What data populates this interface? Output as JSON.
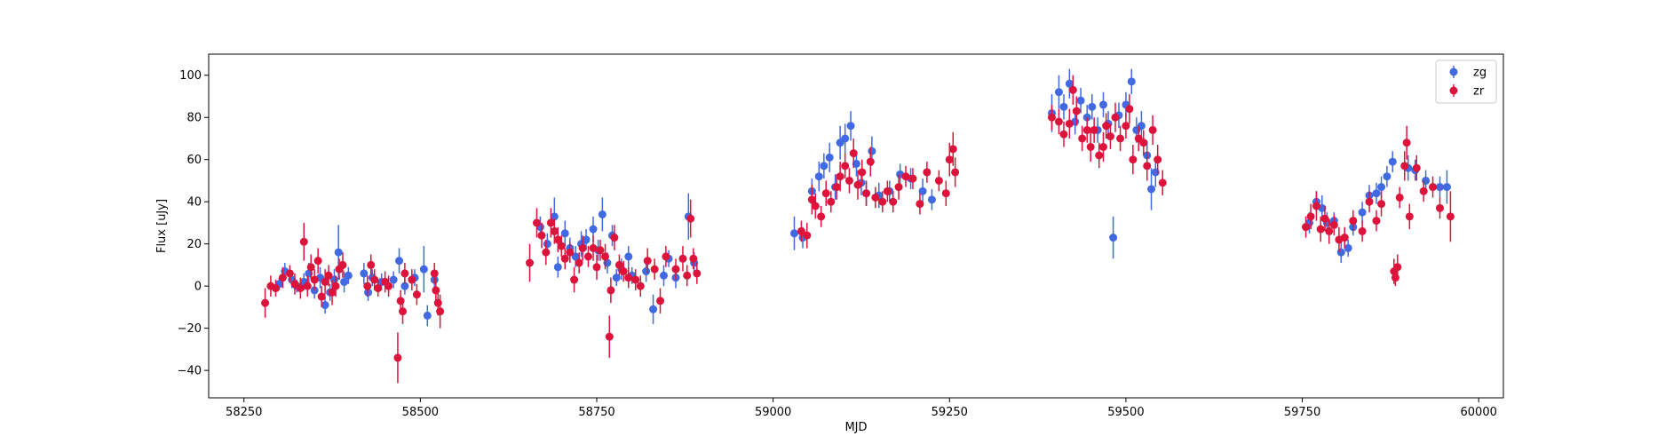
{
  "chart_data": {
    "type": "scatter",
    "title": "",
    "xlabel": "MJD",
    "ylabel": "Flux [uJy]",
    "xlim": [
      58200,
      60035
    ],
    "ylim": [
      -53,
      110
    ],
    "xticks": [
      58250,
      58500,
      58750,
      59000,
      59250,
      59500,
      59750,
      60000
    ],
    "yticks": [
      -40,
      -20,
      0,
      20,
      40,
      60,
      80,
      100
    ],
    "grid": false,
    "legend": "top-right",
    "series": [
      {
        "name": "zg",
        "color": "#4169E1",
        "points": [
          [
            58300,
            1,
            3
          ],
          [
            58308,
            7,
            4
          ],
          [
            58318,
            3,
            4
          ],
          [
            58325,
            0,
            3
          ],
          [
            58335,
            2,
            4
          ],
          [
            58342,
            6,
            5
          ],
          [
            58350,
            -2,
            4
          ],
          [
            58358,
            4,
            5
          ],
          [
            58365,
            -9,
            4
          ],
          [
            58372,
            -3,
            4
          ],
          [
            58378,
            3,
            5
          ],
          [
            58384,
            16,
            13
          ],
          [
            58392,
            2,
            5
          ],
          [
            58398,
            5,
            4
          ],
          [
            58420,
            6,
            5
          ],
          [
            58426,
            -3,
            4
          ],
          [
            58432,
            4,
            4
          ],
          [
            58445,
            2,
            4
          ],
          [
            58462,
            3,
            4
          ],
          [
            58470,
            12,
            6
          ],
          [
            58478,
            0,
            4
          ],
          [
            58492,
            4,
            4
          ],
          [
            58505,
            8,
            11
          ],
          [
            58510,
            -14,
            5
          ],
          [
            58520,
            3,
            4
          ],
          [
            58670,
            28,
            5
          ],
          [
            58680,
            20,
            5
          ],
          [
            58690,
            33,
            9
          ],
          [
            58695,
            9,
            5
          ],
          [
            58705,
            25,
            6
          ],
          [
            58712,
            18,
            5
          ],
          [
            58720,
            14,
            5
          ],
          [
            58728,
            20,
            6
          ],
          [
            58735,
            22,
            5
          ],
          [
            58745,
            27,
            6
          ],
          [
            58752,
            17,
            5
          ],
          [
            58758,
            34,
            8
          ],
          [
            58765,
            11,
            5
          ],
          [
            58772,
            24,
            5
          ],
          [
            58778,
            4,
            4
          ],
          [
            58785,
            8,
            5
          ],
          [
            58795,
            14,
            5
          ],
          [
            58800,
            5,
            4
          ],
          [
            58820,
            7,
            5
          ],
          [
            58830,
            -11,
            7
          ],
          [
            58845,
            5,
            5
          ],
          [
            58852,
            13,
            4
          ],
          [
            58862,
            4,
            5
          ],
          [
            58880,
            33,
            11
          ],
          [
            58888,
            11,
            5
          ],
          [
            59030,
            25,
            8
          ],
          [
            59042,
            23,
            5
          ],
          [
            59055,
            45,
            6
          ],
          [
            59065,
            52,
            7
          ],
          [
            59072,
            57,
            6
          ],
          [
            59080,
            61,
            7
          ],
          [
            59088,
            47,
            6
          ],
          [
            59095,
            68,
            8
          ],
          [
            59102,
            70,
            7
          ],
          [
            59110,
            76,
            7
          ],
          [
            59118,
            58,
            6
          ],
          [
            59125,
            49,
            6
          ],
          [
            59132,
            44,
            6
          ],
          [
            59140,
            64,
            7
          ],
          [
            59150,
            43,
            6
          ],
          [
            59165,
            45,
            5
          ],
          [
            59180,
            53,
            5
          ],
          [
            59195,
            51,
            5
          ],
          [
            59212,
            45,
            6
          ],
          [
            59225,
            41,
            5
          ],
          [
            59395,
            82,
            9
          ],
          [
            59405,
            92,
            8
          ],
          [
            59412,
            85,
            6
          ],
          [
            59420,
            96,
            7
          ],
          [
            59428,
            78,
            6
          ],
          [
            59436,
            88,
            6
          ],
          [
            59445,
            80,
            6
          ],
          [
            59452,
            85,
            6
          ],
          [
            59460,
            74,
            6
          ],
          [
            59468,
            86,
            6
          ],
          [
            59475,
            77,
            6
          ],
          [
            59482,
            23,
            10
          ],
          [
            59490,
            81,
            6
          ],
          [
            59500,
            86,
            6
          ],
          [
            59508,
            97,
            6
          ],
          [
            59515,
            74,
            6
          ],
          [
            59522,
            76,
            7
          ],
          [
            59530,
            62,
            7
          ],
          [
            59536,
            46,
            10
          ],
          [
            59542,
            54,
            7
          ],
          [
            59760,
            30,
            5
          ],
          [
            59770,
            40,
            5
          ],
          [
            59778,
            37,
            6
          ],
          [
            59785,
            30,
            5
          ],
          [
            59795,
            31,
            4
          ],
          [
            59805,
            16,
            5
          ],
          [
            59815,
            18,
            4
          ],
          [
            59822,
            28,
            4
          ],
          [
            59835,
            35,
            5
          ],
          [
            59845,
            43,
            5
          ],
          [
            59855,
            44,
            5
          ],
          [
            59862,
            47,
            5
          ],
          [
            59870,
            52,
            5
          ],
          [
            59878,
            59,
            5
          ],
          [
            59900,
            56,
            6
          ],
          [
            59910,
            55,
            5
          ],
          [
            59925,
            50,
            5
          ],
          [
            59945,
            47,
            5
          ],
          [
            59955,
            47,
            8
          ]
        ]
      },
      {
        "name": "zr",
        "color": "#DC143C",
        "points": [
          [
            58280,
            -8,
            7
          ],
          [
            58288,
            0,
            5
          ],
          [
            58295,
            -1,
            4
          ],
          [
            58305,
            4,
            5
          ],
          [
            58315,
            6,
            4
          ],
          [
            58322,
            1,
            5
          ],
          [
            58330,
            -1,
            5
          ],
          [
            58335,
            21,
            9
          ],
          [
            58340,
            0,
            5
          ],
          [
            58345,
            9,
            6
          ],
          [
            58350,
            3,
            5
          ],
          [
            58355,
            12,
            6
          ],
          [
            58360,
            -5,
            5
          ],
          [
            58365,
            2,
            6
          ],
          [
            58370,
            5,
            5
          ],
          [
            58375,
            -3,
            6
          ],
          [
            58380,
            0,
            5
          ],
          [
            58385,
            8,
            5
          ],
          [
            58390,
            10,
            6
          ],
          [
            58425,
            0,
            5
          ],
          [
            58430,
            10,
            5
          ],
          [
            58435,
            3,
            5
          ],
          [
            58440,
            -1,
            4
          ],
          [
            58450,
            2,
            5
          ],
          [
            58455,
            0,
            5
          ],
          [
            58468,
            -34,
            12
          ],
          [
            58472,
            -7,
            5
          ],
          [
            58475,
            -12,
            6
          ],
          [
            58478,
            6,
            5
          ],
          [
            58488,
            3,
            5
          ],
          [
            58495,
            -4,
            5
          ],
          [
            58520,
            6,
            5
          ],
          [
            58522,
            -2,
            6
          ],
          [
            58525,
            -8,
            6
          ],
          [
            58528,
            -12,
            8
          ],
          [
            58655,
            11,
            9
          ],
          [
            58665,
            30,
            7
          ],
          [
            58672,
            24,
            6
          ],
          [
            58678,
            16,
            6
          ],
          [
            58685,
            30,
            7
          ],
          [
            58690,
            26,
            6
          ],
          [
            58695,
            22,
            6
          ],
          [
            58700,
            19,
            5
          ],
          [
            58705,
            13,
            5
          ],
          [
            58712,
            16,
            5
          ],
          [
            58718,
            3,
            6
          ],
          [
            58725,
            11,
            5
          ],
          [
            58730,
            18,
            6
          ],
          [
            58738,
            14,
            5
          ],
          [
            58745,
            18,
            6
          ],
          [
            58750,
            9,
            6
          ],
          [
            58755,
            17,
            5
          ],
          [
            58762,
            14,
            6
          ],
          [
            58768,
            -24,
            10
          ],
          [
            58770,
            -2,
            6
          ],
          [
            58775,
            23,
            6
          ],
          [
            58782,
            10,
            5
          ],
          [
            58788,
            7,
            5
          ],
          [
            58795,
            4,
            5
          ],
          [
            58805,
            3,
            5
          ],
          [
            58812,
            0,
            5
          ],
          [
            58822,
            12,
            6
          ],
          [
            58832,
            8,
            5
          ],
          [
            58840,
            -7,
            6
          ],
          [
            58848,
            14,
            5
          ],
          [
            58862,
            8,
            5
          ],
          [
            58872,
            13,
            6
          ],
          [
            58878,
            5,
            5
          ],
          [
            58883,
            32,
            9
          ],
          [
            58887,
            13,
            5
          ],
          [
            58892,
            6,
            5
          ],
          [
            59040,
            26,
            5
          ],
          [
            59048,
            24,
            6
          ],
          [
            59055,
            41,
            7
          ],
          [
            59060,
            38,
            6
          ],
          [
            59068,
            33,
            5
          ],
          [
            59075,
            44,
            6
          ],
          [
            59082,
            40,
            5
          ],
          [
            59090,
            47,
            6
          ],
          [
            59095,
            52,
            7
          ],
          [
            59102,
            57,
            6
          ],
          [
            59108,
            50,
            6
          ],
          [
            59114,
            63,
            7
          ],
          [
            59120,
            48,
            7
          ],
          [
            59126,
            54,
            6
          ],
          [
            59132,
            44,
            6
          ],
          [
            59138,
            59,
            7
          ],
          [
            59145,
            42,
            5
          ],
          [
            59155,
            40,
            5
          ],
          [
            59162,
            45,
            5
          ],
          [
            59170,
            40,
            5
          ],
          [
            59178,
            47,
            6
          ],
          [
            59188,
            52,
            5
          ],
          [
            59198,
            51,
            5
          ],
          [
            59208,
            39,
            5
          ],
          [
            59218,
            54,
            5
          ],
          [
            59235,
            50,
            5
          ],
          [
            59245,
            44,
            6
          ],
          [
            59250,
            60,
            8
          ],
          [
            59255,
            65,
            8
          ],
          [
            59258,
            54,
            7
          ],
          [
            59395,
            80,
            6
          ],
          [
            59405,
            78,
            6
          ],
          [
            59412,
            72,
            6
          ],
          [
            59420,
            77,
            7
          ],
          [
            59425,
            93,
            7
          ],
          [
            59430,
            83,
            7
          ],
          [
            59438,
            70,
            6
          ],
          [
            59445,
            74,
            6
          ],
          [
            59450,
            66,
            7
          ],
          [
            59455,
            74,
            6
          ],
          [
            59462,
            62,
            6
          ],
          [
            59468,
            66,
            7
          ],
          [
            59472,
            76,
            6
          ],
          [
            59478,
            71,
            6
          ],
          [
            59485,
            80,
            7
          ],
          [
            59492,
            70,
            6
          ],
          [
            59500,
            76,
            6
          ],
          [
            59505,
            84,
            7
          ],
          [
            59510,
            60,
            7
          ],
          [
            59518,
            70,
            6
          ],
          [
            59525,
            68,
            6
          ],
          [
            59530,
            57,
            7
          ],
          [
            59538,
            74,
            7
          ],
          [
            59545,
            60,
            7
          ],
          [
            59552,
            49,
            6
          ],
          [
            59755,
            28,
            5
          ],
          [
            59762,
            33,
            6
          ],
          [
            59770,
            38,
            7
          ],
          [
            59776,
            27,
            6
          ],
          [
            59782,
            32,
            6
          ],
          [
            59788,
            26,
            6
          ],
          [
            59795,
            29,
            5
          ],
          [
            59802,
            22,
            6
          ],
          [
            59810,
            23,
            5
          ],
          [
            59822,
            31,
            5
          ],
          [
            59835,
            26,
            5
          ],
          [
            59845,
            40,
            5
          ],
          [
            59855,
            31,
            5
          ],
          [
            59862,
            39,
            6
          ],
          [
            59880,
            7,
            6
          ],
          [
            59882,
            4,
            4
          ],
          [
            59885,
            9,
            6
          ],
          [
            59888,
            42,
            5
          ],
          [
            59895,
            57,
            7
          ],
          [
            59898,
            68,
            8
          ],
          [
            59902,
            33,
            6
          ],
          [
            59912,
            56,
            6
          ],
          [
            59922,
            45,
            5
          ],
          [
            59935,
            47,
            5
          ],
          [
            59945,
            37,
            5
          ],
          [
            59960,
            33,
            12
          ]
        ]
      }
    ]
  }
}
